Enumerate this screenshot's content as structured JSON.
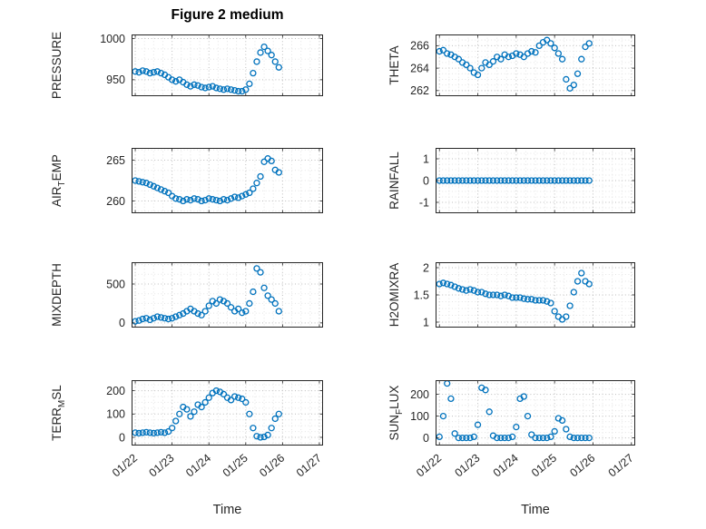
{
  "title": "Figure 2 medium",
  "xlabel": "Time",
  "colors": {
    "marker": "#0072BD",
    "axis": "#262626",
    "text": "#262626",
    "grid_major": "#bdbdbd",
    "grid_minor": "#e4e4e4"
  },
  "x_common": [
    22.0,
    22.1,
    22.2,
    22.3,
    22.4,
    22.5,
    22.6,
    22.7,
    22.8,
    22.9,
    23.0,
    23.1,
    23.2,
    23.3,
    23.4,
    23.5,
    23.6,
    23.7,
    23.8,
    23.9,
    24.0,
    24.1,
    24.2,
    24.3,
    24.4,
    24.5,
    24.6,
    24.7,
    24.8,
    24.9,
    25.0,
    25.1,
    25.2,
    25.3,
    25.4,
    25.5,
    25.6,
    25.7,
    25.8,
    25.9
  ],
  "chart_data": [
    {
      "type": "scatter",
      "name": "PRESSURE",
      "ylabel_pre": "PRESSURE",
      "ylabel_sub": "",
      "ylabel_post": "",
      "xlim": [
        21.9,
        27.1
      ],
      "ylim": [
        930,
        1005
      ],
      "xticks": [
        22,
        23,
        24,
        25,
        26,
        27
      ],
      "xticklabels": [
        "01/22",
        "01/23",
        "01/24",
        "01/25",
        "01/26",
        "01/27"
      ],
      "show_xticklabels": false,
      "yticks": [
        950,
        1000
      ],
      "yticklabels": [
        "950",
        "1000"
      ],
      "y": [
        960,
        959,
        961,
        960,
        958,
        959,
        960,
        958,
        956,
        953,
        950,
        948,
        950,
        947,
        944,
        942,
        944,
        943,
        941,
        940,
        941,
        942,
        940,
        939,
        938,
        939,
        938,
        937,
        936,
        936,
        938,
        945,
        958,
        972,
        983,
        990,
        985,
        980,
        972,
        965
      ]
    },
    {
      "type": "scatter",
      "name": "THETA",
      "ylabel_pre": "THETA",
      "ylabel_sub": "",
      "ylabel_post": "",
      "xlim": [
        21.9,
        27.1
      ],
      "ylim": [
        261.5,
        267
      ],
      "xticks": [
        22,
        23,
        24,
        25,
        26,
        27
      ],
      "xticklabels": [
        "01/22",
        "01/23",
        "01/24",
        "01/25",
        "01/26",
        "01/27"
      ],
      "show_xticklabels": false,
      "yticks": [
        262,
        264,
        266
      ],
      "yticklabels": [
        "262",
        "264",
        "266"
      ],
      "y": [
        265.5,
        265.6,
        265.3,
        265.2,
        265.0,
        264.8,
        264.5,
        264.3,
        264.0,
        263.6,
        263.4,
        264.0,
        264.5,
        264.3,
        264.6,
        265.0,
        264.8,
        265.2,
        265.0,
        265.1,
        265.3,
        265.2,
        265.0,
        265.3,
        265.5,
        265.4,
        266.0,
        266.3,
        266.5,
        266.2,
        265.8,
        265.3,
        264.8,
        263.0,
        262.2,
        262.5,
        263.5,
        264.8,
        265.9,
        266.2
      ]
    },
    {
      "type": "scatter",
      "name": "AIR_TEMP",
      "ylabel_pre": "AIR",
      "ylabel_sub": "T",
      "ylabel_post": "EMP",
      "xlim": [
        21.9,
        27.1
      ],
      "ylim": [
        258.5,
        266.5
      ],
      "xticks": [
        22,
        23,
        24,
        25,
        26,
        27
      ],
      "xticklabels": [
        "01/22",
        "01/23",
        "01/24",
        "01/25",
        "01/26",
        "01/27"
      ],
      "show_xticklabels": false,
      "yticks": [
        260,
        265
      ],
      "yticklabels": [
        "260",
        "265"
      ],
      "y": [
        262.5,
        262.4,
        262.3,
        262.2,
        262.0,
        261.8,
        261.6,
        261.4,
        261.2,
        261.0,
        260.6,
        260.3,
        260.2,
        260.0,
        260.2,
        260.1,
        260.3,
        260.2,
        260.0,
        260.1,
        260.3,
        260.2,
        260.1,
        260.0,
        260.2,
        260.1,
        260.3,
        260.5,
        260.4,
        260.6,
        260.8,
        261.0,
        261.5,
        262.2,
        263.0,
        264.8,
        265.2,
        264.9,
        263.8,
        263.5
      ]
    },
    {
      "type": "scatter",
      "name": "RAINFALL",
      "ylabel_pre": "RAINFALL",
      "ylabel_sub": "",
      "ylabel_post": "",
      "xlim": [
        21.9,
        27.1
      ],
      "ylim": [
        -1.5,
        1.5
      ],
      "xticks": [
        22,
        23,
        24,
        25,
        26,
        27
      ],
      "xticklabels": [
        "01/22",
        "01/23",
        "01/24",
        "01/25",
        "01/26",
        "01/27"
      ],
      "show_xticklabels": false,
      "yticks": [
        -1,
        0,
        1
      ],
      "yticklabels": [
        "-1",
        "0",
        "1"
      ],
      "y": [
        0,
        0,
        0,
        0,
        0,
        0,
        0,
        0,
        0,
        0,
        0,
        0,
        0,
        0,
        0,
        0,
        0,
        0,
        0,
        0,
        0,
        0,
        0,
        0,
        0,
        0,
        0,
        0,
        0,
        0,
        0,
        0,
        0,
        0,
        0,
        0,
        0,
        0,
        0,
        0
      ]
    },
    {
      "type": "scatter",
      "name": "MIXDEPTH",
      "ylabel_pre": "MIXDEPTH",
      "ylabel_sub": "",
      "ylabel_post": "",
      "xlim": [
        21.9,
        27.1
      ],
      "ylim": [
        -60,
        780
      ],
      "xticks": [
        22,
        23,
        24,
        25,
        26,
        27
      ],
      "xticklabels": [
        "01/22",
        "01/23",
        "01/24",
        "01/25",
        "01/26",
        "01/27"
      ],
      "show_xticklabels": false,
      "yticks": [
        0,
        500
      ],
      "yticklabels": [
        "0",
        "500"
      ],
      "y": [
        20,
        30,
        50,
        60,
        40,
        60,
        80,
        70,
        60,
        50,
        60,
        80,
        100,
        120,
        150,
        180,
        150,
        120,
        100,
        150,
        220,
        280,
        250,
        300,
        280,
        250,
        200,
        150,
        180,
        130,
        150,
        250,
        400,
        700,
        650,
        450,
        350,
        300,
        250,
        150
      ]
    },
    {
      "type": "scatter",
      "name": "H2OMIXRA",
      "ylabel_pre": "H2OMIXRA",
      "ylabel_sub": "",
      "ylabel_post": "",
      "xlim": [
        21.9,
        27.1
      ],
      "ylim": [
        0.9,
        2.1
      ],
      "xticks": [
        22,
        23,
        24,
        25,
        26,
        27
      ],
      "xticklabels": [
        "01/22",
        "01/23",
        "01/24",
        "01/25",
        "01/26",
        "01/27"
      ],
      "show_xticklabels": false,
      "yticks": [
        1,
        1.5,
        2
      ],
      "yticklabels": [
        "1",
        "1.5",
        "2"
      ],
      "y": [
        1.7,
        1.72,
        1.7,
        1.68,
        1.65,
        1.62,
        1.6,
        1.58,
        1.6,
        1.58,
        1.55,
        1.55,
        1.52,
        1.5,
        1.5,
        1.5,
        1.48,
        1.5,
        1.48,
        1.45,
        1.45,
        1.45,
        1.43,
        1.42,
        1.42,
        1.4,
        1.4,
        1.4,
        1.38,
        1.35,
        1.2,
        1.1,
        1.05,
        1.1,
        1.3,
        1.55,
        1.75,
        1.9,
        1.75,
        1.7
      ]
    },
    {
      "type": "scatter",
      "name": "TERR_MSL",
      "ylabel_pre": "TERR",
      "ylabel_sub": "M",
      "ylabel_post": "SL",
      "xlim": [
        21.9,
        27.1
      ],
      "ylim": [
        -35,
        245
      ],
      "xticks": [
        22,
        23,
        24,
        25,
        26,
        27
      ],
      "xticklabels": [
        "01/22",
        "01/23",
        "01/24",
        "01/25",
        "01/26",
        "01/27"
      ],
      "show_xticklabels": true,
      "yticks": [
        0,
        100,
        200
      ],
      "yticklabels": [
        "0",
        "100",
        "200"
      ],
      "y": [
        20,
        18,
        20,
        22,
        20,
        18,
        20,
        22,
        20,
        25,
        40,
        70,
        100,
        130,
        120,
        90,
        110,
        140,
        130,
        150,
        170,
        190,
        200,
        195,
        185,
        170,
        160,
        175,
        170,
        165,
        150,
        100,
        40,
        5,
        0,
        2,
        10,
        40,
        80,
        100
      ]
    },
    {
      "type": "scatter",
      "name": "SUN_FLUX",
      "ylabel_pre": "SUN",
      "ylabel_sub": "F",
      "ylabel_post": "LUX",
      "xlim": [
        21.9,
        27.1
      ],
      "ylim": [
        -35,
        265
      ],
      "xticks": [
        22,
        23,
        24,
        25,
        26,
        27
      ],
      "xticklabels": [
        "01/22",
        "01/23",
        "01/24",
        "01/25",
        "01/26",
        "01/27"
      ],
      "show_xticklabels": true,
      "yticks": [
        0,
        100,
        200
      ],
      "yticklabels": [
        "0",
        "100",
        "200"
      ],
      "y": [
        5,
        100,
        250,
        180,
        20,
        0,
        0,
        0,
        0,
        5,
        60,
        230,
        220,
        120,
        10,
        0,
        0,
        0,
        0,
        5,
        50,
        180,
        190,
        100,
        15,
        0,
        0,
        0,
        0,
        5,
        30,
        90,
        80,
        40,
        5,
        0,
        0,
        0,
        0,
        0
      ]
    }
  ]
}
